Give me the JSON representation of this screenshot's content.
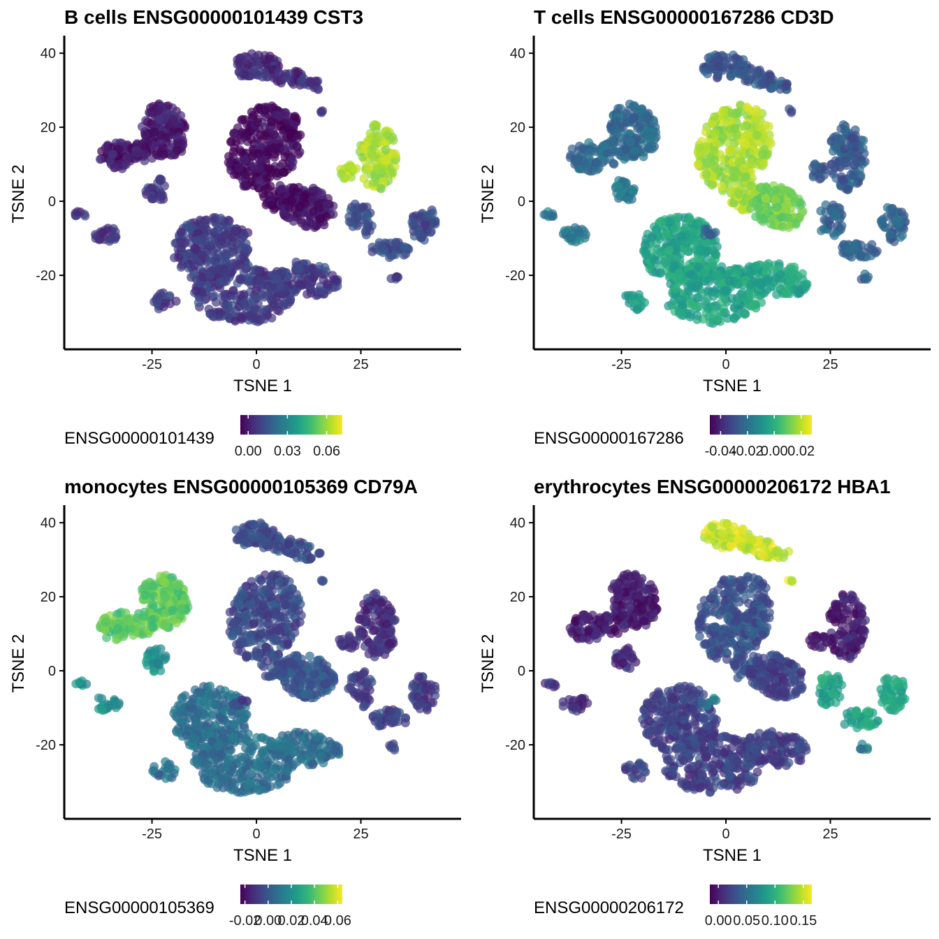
{
  "colors": {
    "viridis": [
      "#440154",
      "#482878",
      "#3e4989",
      "#31688e",
      "#26828e",
      "#1f9e89",
      "#35b779",
      "#6ece58",
      "#b5de2b",
      "#fde725"
    ],
    "axis": "#000000"
  },
  "chart_data": [
    {
      "type": "scatter",
      "title": "B cells ENSG00000101439 CST3",
      "xlabel": "TSNE 1",
      "ylabel": "TSNE 2",
      "x_ticks": [
        "-25",
        "0",
        "25"
      ],
      "y_ticks": [
        "40",
        "20",
        "0",
        "-20"
      ],
      "xlim": [
        -46,
        49
      ],
      "ylim": [
        -40,
        44
      ],
      "legend": {
        "title": "ENSG00000101439",
        "position": "bottom-left",
        "ticks": [
          "0.00",
          "0.03",
          "0.06"
        ],
        "tick_values": [
          0.0,
          0.03,
          0.06
        ],
        "range": [
          -0.006,
          0.072
        ]
      },
      "series": [
        {
          "cluster": "top",
          "value": 0.004
        },
        {
          "cluster": "top-left",
          "value": 0.0
        },
        {
          "cluster": "center-blob",
          "value": -0.004
        },
        {
          "cluster": "center-lower",
          "value": -0.002
        },
        {
          "cluster": "big-lower",
          "value": 0.008
        },
        {
          "cluster": "left-small",
          "value": 0.006
        },
        {
          "cluster": "right-upper",
          "value": 0.062
        },
        {
          "cluster": "right-lower",
          "value": 0.012
        },
        {
          "cluster": "isolated",
          "value": 0.006
        }
      ]
    },
    {
      "type": "scatter",
      "title": "T cells ENSG00000167286 CD3D",
      "xlabel": "TSNE 1",
      "ylabel": "TSNE 2",
      "x_ticks": [
        "-25",
        "0",
        "25"
      ],
      "y_ticks": [
        "40",
        "20",
        "0",
        "-20"
      ],
      "xlim": [
        -46,
        49
      ],
      "ylim": [
        -40,
        44
      ],
      "legend": {
        "title": "ENSG00000167286",
        "position": "bottom-left",
        "ticks": [
          "-0.04",
          "-0.02",
          "0.00",
          "0.02"
        ],
        "tick_values": [
          -0.04,
          -0.02,
          0.0,
          0.02
        ],
        "range": [
          -0.048,
          0.028
        ]
      },
      "series": [
        {
          "cluster": "top",
          "value": -0.028
        },
        {
          "cluster": "top-left",
          "value": -0.022
        },
        {
          "cluster": "center-blob",
          "value": 0.018
        },
        {
          "cluster": "center-lower",
          "value": 0.012
        },
        {
          "cluster": "big-lower",
          "value": -0.004
        },
        {
          "cluster": "left-small",
          "value": -0.018
        },
        {
          "cluster": "right-upper",
          "value": -0.026
        },
        {
          "cluster": "right-lower",
          "value": -0.024
        },
        {
          "cluster": "isolated",
          "value": -0.024
        }
      ]
    },
    {
      "type": "scatter",
      "title": "monocytes ENSG00000105369 CD79A",
      "xlabel": "TSNE 1",
      "ylabel": "TSNE 2",
      "x_ticks": [
        "-25",
        "0",
        "25"
      ],
      "y_ticks": [
        "40",
        "20",
        "0",
        "-20"
      ],
      "xlim": [
        -46,
        49
      ],
      "ylim": [
        -40,
        44
      ],
      "legend": {
        "title": "ENSG00000105369",
        "position": "bottom-left",
        "ticks": [
          "-0.02",
          "0.00",
          "0.02",
          "0.04",
          "0.06"
        ],
        "tick_values": [
          -0.02,
          0.0,
          0.02,
          0.04,
          0.06
        ],
        "range": [
          -0.024,
          0.064
        ]
      },
      "series": [
        {
          "cluster": "top",
          "value": -0.004
        },
        {
          "cluster": "top-left",
          "value": 0.042
        },
        {
          "cluster": "center-blob",
          "value": -0.004
        },
        {
          "cluster": "center-lower",
          "value": 0.0
        },
        {
          "cluster": "big-lower",
          "value": 0.008
        },
        {
          "cluster": "left-small",
          "value": 0.02
        },
        {
          "cluster": "right-upper",
          "value": -0.012
        },
        {
          "cluster": "right-lower",
          "value": -0.008
        },
        {
          "cluster": "isolated",
          "value": -0.008
        }
      ]
    },
    {
      "type": "scatter",
      "title": "erythrocytes ENSG00000206172 HBA1",
      "xlabel": "TSNE 1",
      "ylabel": "TSNE 2",
      "x_ticks": [
        "-25",
        "0",
        "25"
      ],
      "y_ticks": [
        "40",
        "20",
        "0",
        "-20"
      ],
      "xlim": [
        -46,
        49
      ],
      "ylim": [
        -40,
        44
      ],
      "legend": {
        "title": "ENSG00000206172",
        "position": "bottom-left",
        "ticks": [
          "0.00",
          "0.05",
          "0.10",
          "0.15"
        ],
        "tick_values": [
          0.0,
          0.05,
          0.1,
          0.15
        ],
        "range": [
          -0.015,
          0.165
        ]
      },
      "series": [
        {
          "cluster": "top",
          "value": 0.15
        },
        {
          "cluster": "top-left",
          "value": 0.0
        },
        {
          "cluster": "center-blob",
          "value": 0.03
        },
        {
          "cluster": "center-lower",
          "value": 0.02
        },
        {
          "cluster": "big-lower",
          "value": 0.02
        },
        {
          "cluster": "left-small",
          "value": 0.01
        },
        {
          "cluster": "right-upper",
          "value": 0.0
        },
        {
          "cluster": "right-lower",
          "value": 0.09
        },
        {
          "cluster": "isolated",
          "value": 0.06
        }
      ]
    }
  ]
}
